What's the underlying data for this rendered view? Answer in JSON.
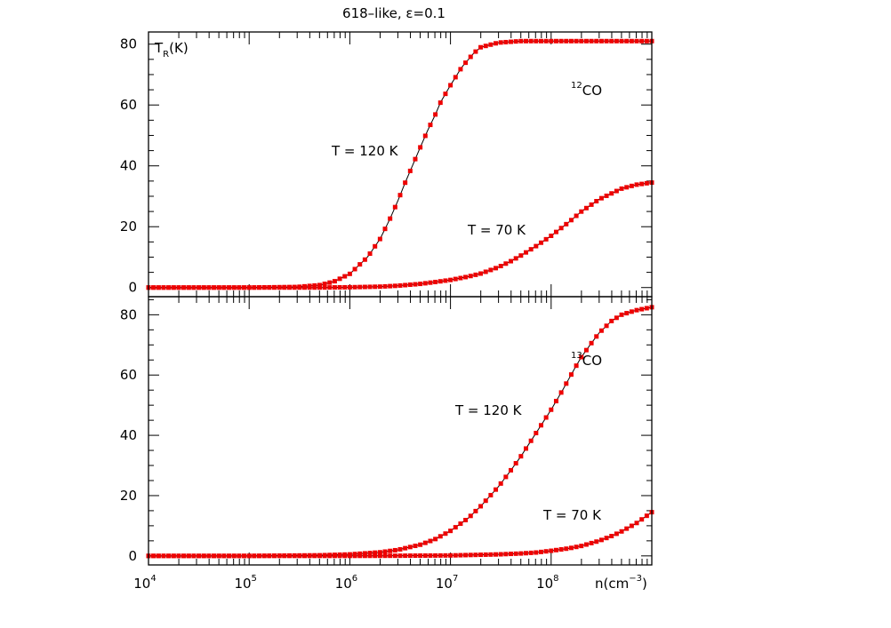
{
  "title": "618–like, ε=0.1",
  "y_label_main": "T",
  "y_label_sub": "R",
  "y_label_unit": "(K)",
  "x_label_main": "n(cm",
  "x_label_sup": "−3",
  "x_label_close": ")",
  "x_tick_base": "10",
  "chart_data": [
    {
      "type": "line",
      "panel": "top",
      "species_mass": "12",
      "species_name": "CO",
      "xlabel": "n(cm-3)",
      "ylabel": "TR(K)",
      "xscale": "log",
      "xlim": [
        10000,
        1000000000
      ],
      "ylim": [
        -3,
        84
      ],
      "x_tick_exponents": [
        "4",
        "5",
        "6",
        "7",
        "8"
      ],
      "y_ticks": [
        "0",
        "20",
        "40",
        "60",
        "80"
      ],
      "series": [
        {
          "label": "T = 120 K",
          "x": [
            10000,
            100000,
            300000,
            500000,
            700000,
            1000000,
            1500000,
            2000000,
            2500000,
            3000000,
            3500000,
            4000000,
            5000000,
            6000000,
            7000000,
            8000000,
            10000000,
            13000000,
            17000000,
            20000000,
            30000000,
            50000000,
            100000000,
            300000000,
            1000000000
          ],
          "y": [
            0,
            0,
            0.2,
            0.8,
            2,
            4.5,
            10,
            16,
            22.5,
            28.5,
            34,
            38.5,
            46,
            52,
            56.5,
            61,
            66.5,
            72.5,
            77,
            79,
            80.5,
            81,
            81,
            81,
            81
          ]
        },
        {
          "label": "T = 70 K",
          "x": [
            10000,
            100000,
            500000,
            1000000,
            2000000,
            3000000,
            5000000,
            7000000,
            10000000,
            15000000,
            20000000,
            30000000,
            40000000,
            50000000,
            70000000,
            100000000,
            150000000,
            200000000,
            300000000,
            500000000,
            700000000,
            1000000000
          ],
          "y": [
            0,
            0,
            0,
            0.1,
            0.3,
            0.6,
            1.2,
            1.8,
            2.5,
            3.6,
            4.6,
            6.7,
            8.7,
            10.5,
            13.5,
            17,
            21.5,
            25,
            29,
            32.5,
            33.8,
            34.5
          ]
        }
      ]
    },
    {
      "type": "line",
      "panel": "bottom",
      "species_mass": "13",
      "species_name": "CO",
      "xlabel": "n(cm-3)",
      "ylabel": "TR(K)",
      "xscale": "log",
      "xlim": [
        10000,
        1000000000
      ],
      "ylim": [
        -3,
        86
      ],
      "x_tick_exponents": [
        "4",
        "5",
        "6",
        "7",
        "8"
      ],
      "y_ticks": [
        "0",
        "20",
        "40",
        "60",
        "80"
      ],
      "series": [
        {
          "label": "T = 120 K",
          "x": [
            10000,
            100000,
            500000,
            1000000,
            2000000,
            3000000,
            5000000,
            7000000,
            10000000,
            15000000,
            20000000,
            30000000,
            40000000,
            50000000,
            70000000,
            100000000,
            130000000,
            170000000,
            200000000,
            250000000,
            300000000,
            400000000,
            500000000,
            700000000,
            1000000000
          ],
          "y": [
            0,
            0,
            0.2,
            0.5,
            1.2,
            2,
            3.7,
            5.5,
            8.3,
            12.5,
            16.5,
            23,
            28.5,
            33,
            40.5,
            48.5,
            55,
            62,
            66,
            70.5,
            74,
            78,
            80,
            81.5,
            82.5
          ]
        },
        {
          "label": "T = 70 K",
          "x": [
            10000,
            1000000,
            3000000,
            10000000,
            30000000,
            50000000,
            70000000,
            100000000,
            150000000,
            200000000,
            300000000,
            400000000,
            500000000,
            700000000,
            1000000000
          ],
          "y": [
            0,
            0,
            0.05,
            0.15,
            0.5,
            0.8,
            1.1,
            1.7,
            2.5,
            3.3,
            5,
            6.6,
            8.1,
            10.8,
            14.5
          ]
        }
      ]
    }
  ]
}
